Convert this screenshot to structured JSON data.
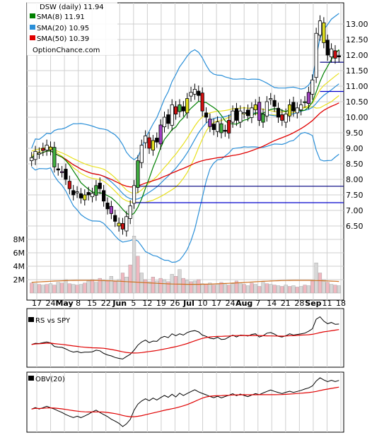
{
  "chart_data": {
    "type": "candlestick",
    "title": "DSW (daily) 11.94",
    "watermark": "OptionChance.com",
    "legend_placement": "top-left",
    "grid": true,
    "price_ylim": [
      6.0,
      13.5
    ],
    "price_ticks": [
      "13.00",
      "12.50",
      "12.00",
      "11.50",
      "11.00",
      "10.50",
      "10.00",
      "9.50",
      "9.00",
      "8.50",
      "8.00",
      "7.50",
      "7.00",
      "6.50"
    ],
    "volume_ticks": [
      "8M",
      "6M",
      "4M",
      "2M"
    ],
    "x_ticks": [
      "17",
      "24",
      "May",
      "8",
      "15",
      "22",
      "Jun",
      "5",
      "12",
      "19",
      "26",
      "Jul",
      "10",
      "17",
      "24",
      "Aug",
      "7",
      "14",
      "21",
      "28",
      "Sep",
      "11",
      "18"
    ],
    "indicators": [
      {
        "name": "SMA(8) 11.91",
        "color": "#008000"
      },
      {
        "name": "SMA(20) 10.95",
        "color": "#2a8fd8"
      },
      {
        "name": "SMA(50) 10.39",
        "color": "#e00000"
      }
    ],
    "horizontal_lines": [
      {
        "value": 7.78,
        "color": "#000080"
      },
      {
        "value": 7.25,
        "color": "#0000cc"
      },
      {
        "value": 10.83,
        "color": "#0000cc"
      },
      {
        "value": 11.77,
        "color": "#000080"
      }
    ],
    "close": [
      8.7,
      8.9,
      8.85,
      9.0,
      9.1,
      8.95,
      8.4,
      8.3,
      8.25,
      8.0,
      7.7,
      7.5,
      7.6,
      7.4,
      7.5,
      7.5,
      7.55,
      7.8,
      7.7,
      7.3,
      7.05,
      6.9,
      6.65,
      6.5,
      6.4,
      6.8,
      7.15,
      7.8,
      8.6,
      9.1,
      9.4,
      9.0,
      9.25,
      9.2,
      9.75,
      10.0,
      9.8,
      10.4,
      10.1,
      10.4,
      10.2,
      10.6,
      10.8,
      10.9,
      10.7,
      10.2,
      10.0,
      9.7,
      9.6,
      9.85,
      9.5,
      9.55,
      9.9,
      10.2,
      9.9,
      10.2,
      10.15,
      10.05,
      10.3,
      10.4,
      9.9,
      10.1,
      10.5,
      10.6,
      10.35,
      10.0,
      9.9,
      10.1,
      10.4,
      10.2,
      10.3,
      10.4,
      10.5,
      10.8,
      11.2,
      12.7,
      13.1,
      12.4,
      12.0,
      12.2,
      11.9,
      11.94
    ],
    "volume_millions": [
      1.5,
      1.4,
      1.3,
      1.2,
      1.3,
      1.4,
      1.2,
      1.6,
      1.5,
      2.0,
      1.4,
      1.3,
      1.2,
      1.3,
      1.5,
      1.8,
      2.0,
      1.6,
      2.2,
      1.9,
      1.8,
      2.5,
      1.7,
      2.0,
      3.0,
      2.4,
      4.2,
      8.5,
      5.5,
      3.0,
      2.0,
      1.7,
      2.4,
      1.8,
      2.2,
      2.0,
      1.7,
      2.8,
      2.5,
      3.5,
      2.2,
      1.9,
      1.7,
      1.8,
      2.0,
      1.4,
      1.3,
      1.5,
      1.2,
      1.4,
      1.6,
      1.3,
      1.2,
      1.4,
      1.8,
      1.5,
      1.3,
      1.1,
      1.5,
      1.3,
      1.0,
      1.6,
      1.4,
      1.3,
      1.2,
      1.1,
      1.0,
      1.2,
      1.0,
      1.1,
      0.9,
      1.0,
      1.2,
      1.1,
      1.8,
      4.5,
      3.0,
      2.0,
      1.6,
      1.3,
      1.2,
      1.1
    ],
    "volume_ma_millions": 1.6,
    "panels": [
      {
        "label": "RS vs SPY"
      },
      {
        "label": "OBV(20)"
      }
    ]
  }
}
